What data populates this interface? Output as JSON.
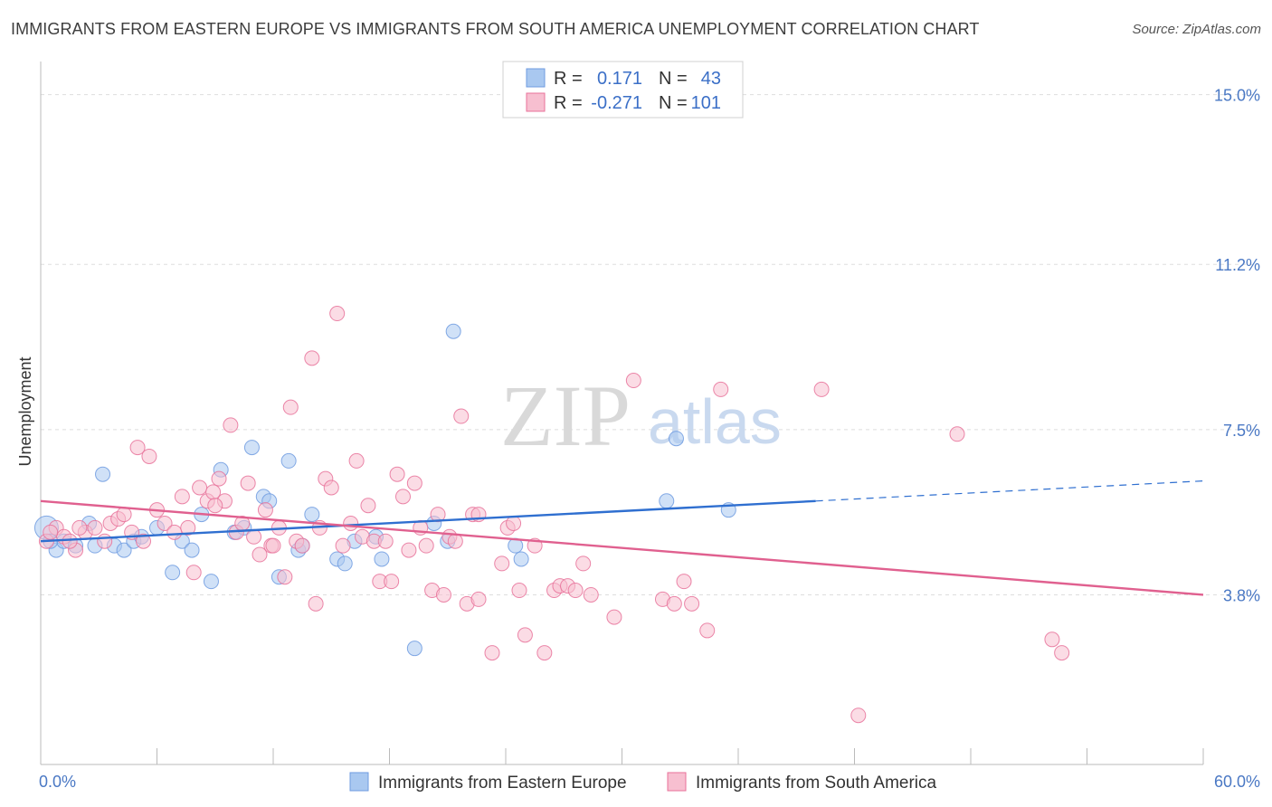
{
  "title": "IMMIGRANTS FROM EASTERN EUROPE VS IMMIGRANTS FROM SOUTH AMERICA UNEMPLOYMENT CORRELATION CHART",
  "source": "Source: ZipAtlas.com",
  "watermark": {
    "zip": "ZIP",
    "atlas": "atlas"
  },
  "legend": {
    "r_label": "R =",
    "n_label": "N =",
    "rows": [
      {
        "r": "0.171",
        "n": "43",
        "color": "#a9c8f0",
        "stroke": "#6f9be0"
      },
      {
        "r": "-0.271",
        "n": "101",
        "color": "#f7bfd0",
        "stroke": "#ea8aa7"
      }
    ]
  },
  "chart_data": {
    "type": "scatter",
    "title": "IMMIGRANTS FROM EASTERN EUROPE VS IMMIGRANTS FROM SOUTH AMERICA UNEMPLOYMENT CORRELATION CHART",
    "xlabel": "",
    "ylabel": "Unemployment",
    "xlim": [
      0,
      60
    ],
    "ylim": [
      0,
      15.5
    ],
    "x_tick_labels": [
      "0.0%",
      "60.0%"
    ],
    "y_ticks": [
      3.8,
      7.5,
      11.2,
      15.0
    ],
    "y_tick_labels": [
      "3.8%",
      "7.5%",
      "11.2%",
      "15.0%"
    ],
    "grid": true,
    "legend_position": "top-center",
    "series": [
      {
        "name": "Immigrants from Eastern Europe",
        "color": "#6f9be0",
        "fill": "#a9c8f0",
        "trend": {
          "x0": 0,
          "y0": 5.0,
          "x1": 40,
          "y1": 5.9,
          "dash_to_x": 60,
          "dash_to_y": 6.35
        },
        "points": [
          [
            0.3,
            5.3
          ],
          [
            0.8,
            4.8
          ],
          [
            1.2,
            5.0
          ],
          [
            1.8,
            4.9
          ],
          [
            2.5,
            5.4
          ],
          [
            2.8,
            4.9
          ],
          [
            3.2,
            6.5
          ],
          [
            3.8,
            4.9
          ],
          [
            4.3,
            4.8
          ],
          [
            4.8,
            5.0
          ],
          [
            5.2,
            5.1
          ],
          [
            6.0,
            5.3
          ],
          [
            6.8,
            4.3
          ],
          [
            7.3,
            5.0
          ],
          [
            7.8,
            4.8
          ],
          [
            8.3,
            5.6
          ],
          [
            8.8,
            4.1
          ],
          [
            9.3,
            6.6
          ],
          [
            10.0,
            5.2
          ],
          [
            10.5,
            5.3
          ],
          [
            10.9,
            7.1
          ],
          [
            11.5,
            6.0
          ],
          [
            11.8,
            5.9
          ],
          [
            12.3,
            4.2
          ],
          [
            12.8,
            6.8
          ],
          [
            13.3,
            4.8
          ],
          [
            13.5,
            4.9
          ],
          [
            14.0,
            5.6
          ],
          [
            15.3,
            4.6
          ],
          [
            15.7,
            4.5
          ],
          [
            16.2,
            5.0
          ],
          [
            17.3,
            5.1
          ],
          [
            17.6,
            4.6
          ],
          [
            19.3,
            2.6
          ],
          [
            20.3,
            5.4
          ],
          [
            21.0,
            5.0
          ],
          [
            21.3,
            9.7
          ],
          [
            24.5,
            4.9
          ],
          [
            24.8,
            4.6
          ],
          [
            32.3,
            5.9
          ],
          [
            32.8,
            7.3
          ],
          [
            35.5,
            5.7
          ],
          [
            0.5,
            5.0
          ]
        ]
      },
      {
        "name": "Immigrants from South America",
        "color": "#e8729a",
        "fill": "#f7bfd0",
        "trend": {
          "x0": 0,
          "y0": 5.9,
          "x1": 60,
          "y1": 3.8
        },
        "points": [
          [
            0.3,
            5.0
          ],
          [
            0.8,
            5.3
          ],
          [
            1.2,
            5.1
          ],
          [
            1.8,
            4.8
          ],
          [
            2.3,
            5.2
          ],
          [
            2.8,
            5.3
          ],
          [
            3.3,
            5.0
          ],
          [
            3.6,
            5.4
          ],
          [
            4.0,
            5.5
          ],
          [
            4.3,
            5.6
          ],
          [
            4.7,
            5.2
          ],
          [
            5.0,
            7.1
          ],
          [
            5.3,
            5.0
          ],
          [
            5.6,
            6.9
          ],
          [
            6.0,
            5.7
          ],
          [
            6.4,
            5.4
          ],
          [
            6.9,
            5.2
          ],
          [
            7.3,
            6.0
          ],
          [
            7.6,
            5.3
          ],
          [
            7.9,
            4.3
          ],
          [
            8.2,
            6.2
          ],
          [
            8.6,
            5.9
          ],
          [
            8.9,
            6.1
          ],
          [
            9.2,
            6.4
          ],
          [
            9.5,
            5.9
          ],
          [
            9.8,
            7.6
          ],
          [
            10.1,
            5.2
          ],
          [
            10.4,
            5.4
          ],
          [
            10.7,
            6.3
          ],
          [
            11.0,
            5.1
          ],
          [
            11.3,
            4.7
          ],
          [
            11.6,
            5.7
          ],
          [
            11.9,
            4.9
          ],
          [
            12.3,
            5.3
          ],
          [
            12.6,
            4.2
          ],
          [
            12.9,
            8.0
          ],
          [
            13.2,
            5.0
          ],
          [
            13.5,
            4.9
          ],
          [
            14.0,
            9.1
          ],
          [
            14.4,
            5.3
          ],
          [
            14.7,
            6.4
          ],
          [
            15.0,
            6.2
          ],
          [
            15.3,
            10.1
          ],
          [
            15.6,
            4.9
          ],
          [
            16.0,
            5.4
          ],
          [
            16.3,
            6.8
          ],
          [
            16.6,
            5.1
          ],
          [
            16.9,
            5.8
          ],
          [
            17.2,
            5.0
          ],
          [
            17.5,
            4.1
          ],
          [
            17.8,
            5.0
          ],
          [
            18.1,
            4.1
          ],
          [
            18.4,
            6.5
          ],
          [
            18.7,
            6.0
          ],
          [
            19.0,
            4.8
          ],
          [
            19.3,
            6.3
          ],
          [
            19.6,
            5.3
          ],
          [
            19.9,
            4.9
          ],
          [
            20.2,
            3.9
          ],
          [
            20.5,
            5.6
          ],
          [
            20.8,
            3.8
          ],
          [
            21.1,
            5.1
          ],
          [
            21.4,
            5.0
          ],
          [
            21.7,
            7.8
          ],
          [
            22.0,
            3.6
          ],
          [
            22.3,
            5.6
          ],
          [
            22.6,
            3.7
          ],
          [
            23.3,
            2.5
          ],
          [
            23.8,
            4.5
          ],
          [
            24.1,
            5.3
          ],
          [
            24.4,
            5.4
          ],
          [
            24.7,
            3.9
          ],
          [
            25.0,
            2.9
          ],
          [
            25.5,
            4.9
          ],
          [
            26.0,
            2.5
          ],
          [
            26.5,
            3.9
          ],
          [
            26.8,
            4.0
          ],
          [
            27.2,
            4.0
          ],
          [
            27.6,
            3.9
          ],
          [
            28.0,
            4.5
          ],
          [
            28.4,
            3.8
          ],
          [
            29.6,
            3.3
          ],
          [
            30.6,
            8.6
          ],
          [
            32.1,
            3.7
          ],
          [
            32.7,
            3.6
          ],
          [
            33.2,
            4.1
          ],
          [
            33.6,
            3.6
          ],
          [
            34.4,
            3.0
          ],
          [
            35.1,
            8.4
          ],
          [
            40.3,
            8.4
          ],
          [
            42.2,
            1.1
          ],
          [
            47.3,
            7.4
          ],
          [
            52.2,
            2.8
          ],
          [
            52.7,
            2.5
          ],
          [
            0.5,
            5.2
          ],
          [
            1.5,
            5.0
          ],
          [
            2.0,
            5.3
          ],
          [
            14.2,
            3.6
          ],
          [
            12.0,
            4.9
          ],
          [
            9.0,
            5.8
          ],
          [
            22.6,
            5.6
          ]
        ]
      }
    ]
  },
  "bottom_legend": [
    {
      "label": "Immigrants from Eastern Europe"
    },
    {
      "label": "Immigrants from South America"
    }
  ]
}
